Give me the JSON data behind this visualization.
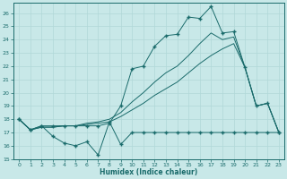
{
  "bg_color": "#c8e8e8",
  "grid_color": "#b0d8d8",
  "line_color": "#1a6b6b",
  "xlim": [
    -0.5,
    23.5
  ],
  "ylim": [
    15,
    26.8
  ],
  "xticks": [
    0,
    1,
    2,
    3,
    4,
    5,
    6,
    7,
    8,
    9,
    10,
    11,
    12,
    13,
    14,
    15,
    16,
    17,
    18,
    19,
    20,
    21,
    22,
    23
  ],
  "yticks": [
    15,
    16,
    17,
    18,
    19,
    20,
    21,
    22,
    23,
    24,
    25,
    26
  ],
  "xlabel": "Humidex (Indice chaleur)",
  "x": [
    0,
    1,
    2,
    3,
    4,
    5,
    6,
    7,
    8,
    9,
    10,
    11,
    12,
    13,
    14,
    15,
    16,
    17,
    18,
    19,
    20,
    21,
    22,
    23
  ],
  "line_jagged_y": [
    18.0,
    17.2,
    17.5,
    16.7,
    16.2,
    16.0,
    16.3,
    15.3,
    17.8,
    16.1,
    17.0,
    17.0,
    17.0,
    17.0,
    17.0,
    17.0,
    17.0,
    17.0,
    17.0,
    17.0,
    17.0,
    17.0,
    17.0,
    17.0
  ],
  "line_upper_y": [
    18.0,
    17.2,
    17.5,
    17.5,
    17.5,
    17.5,
    17.5,
    17.5,
    17.7,
    19.0,
    21.8,
    22.0,
    23.5,
    24.3,
    24.4,
    25.7,
    25.6,
    26.5,
    24.5,
    24.6,
    21.9,
    19.0,
    19.2,
    17.0
  ],
  "line_trend1_y": [
    18.0,
    17.2,
    17.4,
    17.4,
    17.5,
    17.5,
    17.6,
    17.7,
    17.8,
    18.2,
    18.7,
    19.2,
    19.8,
    20.3,
    20.8,
    21.5,
    22.2,
    22.8,
    23.3,
    23.7,
    21.9,
    19.0,
    19.2,
    17.0
  ],
  "line_trend2_y": [
    18.0,
    17.2,
    17.4,
    17.4,
    17.5,
    17.5,
    17.7,
    17.8,
    18.0,
    18.5,
    19.3,
    20.0,
    20.8,
    21.5,
    22.0,
    22.8,
    23.7,
    24.5,
    24.0,
    24.2,
    21.9,
    19.0,
    19.2,
    17.0
  ]
}
